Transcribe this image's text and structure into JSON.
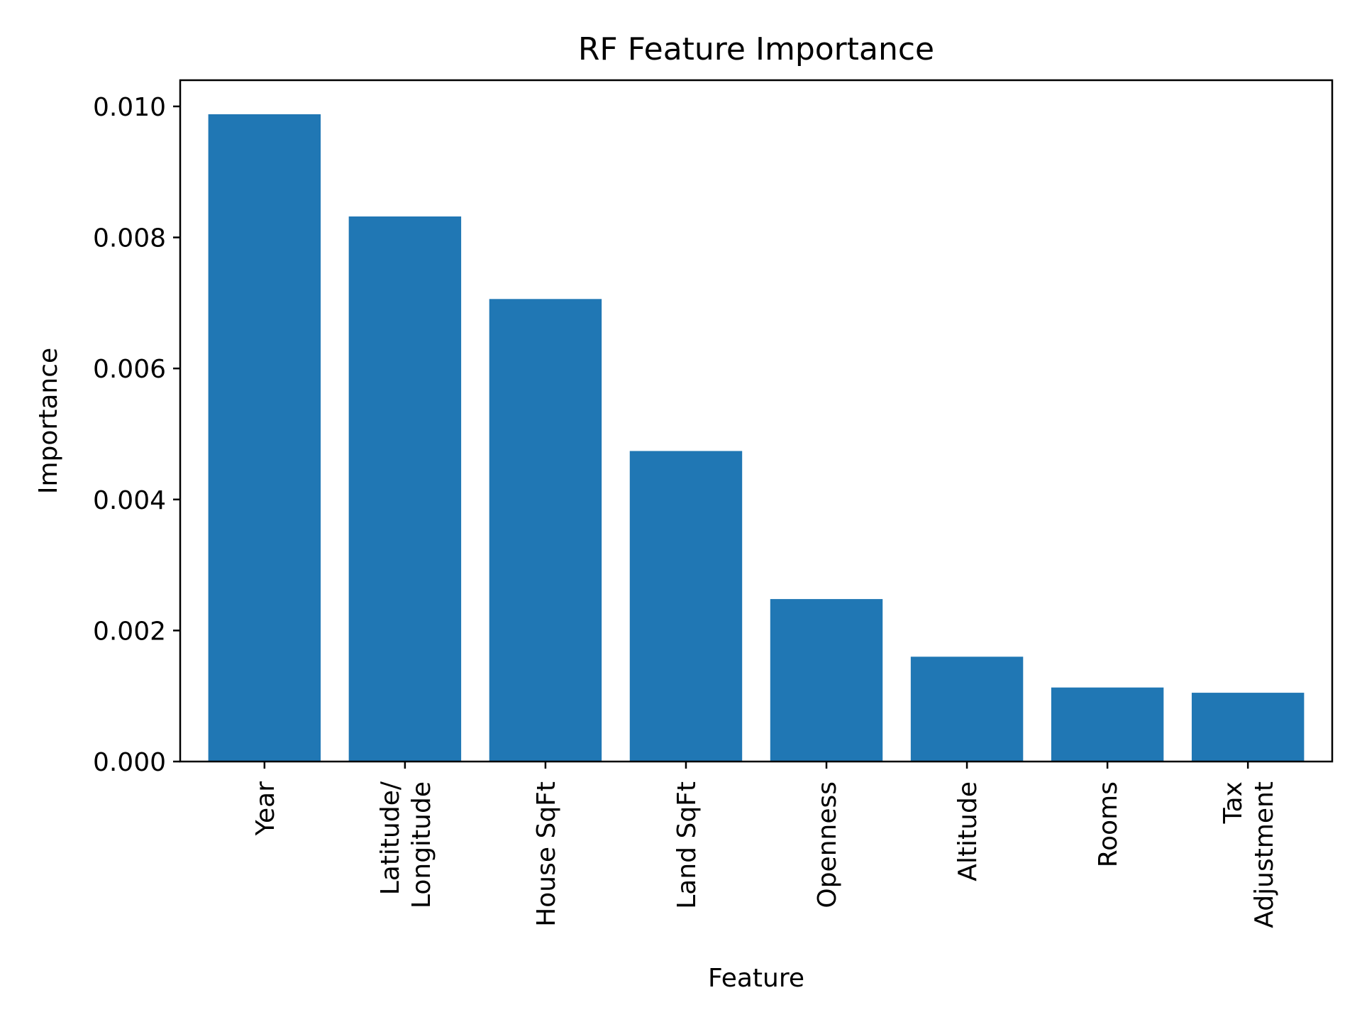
{
  "chart_data": {
    "type": "bar",
    "title": "RF Feature Importance",
    "xlabel": "Feature",
    "ylabel": "Importance",
    "categories": [
      [
        "Year"
      ],
      [
        "Latitude/",
        "Longitude"
      ],
      [
        "House SqFt"
      ],
      [
        "Land SqFt"
      ],
      [
        "Openness"
      ],
      [
        "Altitude"
      ],
      [
        "Rooms"
      ],
      [
        "Tax",
        "Adjustment"
      ]
    ],
    "values": [
      0.00988,
      0.00832,
      0.00706,
      0.00474,
      0.00248,
      0.0016,
      0.00113,
      0.00105
    ],
    "ylim": [
      0,
      0.0104
    ],
    "yticks": [
      "0.000",
      "0.002",
      "0.004",
      "0.006",
      "0.008",
      "0.010"
    ],
    "ytick_values": [
      0,
      0.002,
      0.004,
      0.006,
      0.008,
      0.01
    ],
    "bar_color": "#2077b4",
    "grid": false,
    "legend": "none",
    "x_tick_rotation": "vertical"
  }
}
